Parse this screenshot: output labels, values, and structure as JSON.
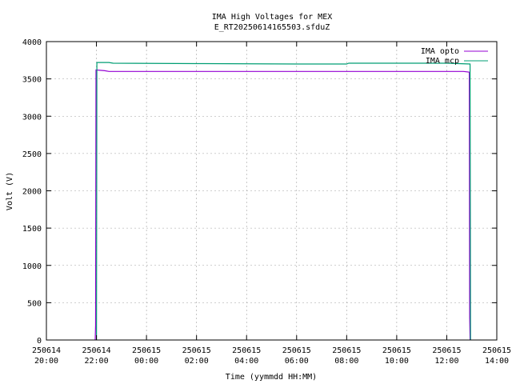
{
  "chart_data": {
    "type": "line",
    "title": "IMA High Voltages for MEX",
    "subtitle": "E_RT20250614165503.sfduZ",
    "xlabel": "Time (yymmdd HH:MM)",
    "ylabel": "Volt (V)",
    "xlim": [
      "2025-06-14 20:00",
      "2025-06-15 14:00"
    ],
    "ylim": [
      0,
      4000
    ],
    "grid": true,
    "legend_position": "top-right",
    "x_ticks": [
      {
        "value": "2025-06-14 20:00",
        "date": "250614",
        "time": "20:00"
      },
      {
        "value": "2025-06-14 22:00",
        "date": "250614",
        "time": "22:00"
      },
      {
        "value": "2025-06-15 00:00",
        "date": "250615",
        "time": "00:00"
      },
      {
        "value": "2025-06-15 02:00",
        "date": "250615",
        "time": "02:00"
      },
      {
        "value": "2025-06-15 04:00",
        "date": "250615",
        "time": "04:00"
      },
      {
        "value": "2025-06-15 06:00",
        "date": "250615",
        "time": "06:00"
      },
      {
        "value": "2025-06-15 08:00",
        "date": "250615",
        "time": "08:00"
      },
      {
        "value": "2025-06-15 10:00",
        "date": "250615",
        "time": "10:00"
      },
      {
        "value": "2025-06-15 12:00",
        "date": "250615",
        "time": "12:00"
      },
      {
        "value": "2025-06-15 14:00",
        "date": "250615",
        "time": "14:00"
      }
    ],
    "y_ticks": [
      "0",
      "500",
      "1000",
      "1500",
      "2000",
      "2500",
      "3000",
      "3500",
      "4000"
    ],
    "series": [
      {
        "name": "IMA opto",
        "color": "#9400d3",
        "points": [
          [
            "2025-06-14 21:57",
            0
          ],
          [
            "2025-06-14 21:58",
            200
          ],
          [
            "2025-06-14 21:59",
            3620
          ],
          [
            "2025-06-14 22:20",
            3610
          ],
          [
            "2025-06-14 22:30",
            3600
          ],
          [
            "2025-06-15 02:00",
            3600
          ],
          [
            "2025-06-15 06:00",
            3600
          ],
          [
            "2025-06-15 10:00",
            3600
          ],
          [
            "2025-06-15 12:40",
            3600
          ],
          [
            "2025-06-15 12:54",
            3590
          ],
          [
            "2025-06-15 12:55",
            300
          ],
          [
            "2025-06-15 12:56",
            0
          ]
        ]
      },
      {
        "name": "IMA mcp",
        "color": "#009e73",
        "points": [
          [
            "2025-06-14 22:00",
            0
          ],
          [
            "2025-06-14 22:01",
            3720
          ],
          [
            "2025-06-14 22:30",
            3720
          ],
          [
            "2025-06-14 22:40",
            3710
          ],
          [
            "2025-06-15 02:00",
            3705
          ],
          [
            "2025-06-15 06:00",
            3700
          ],
          [
            "2025-06-15 08:00",
            3700
          ],
          [
            "2025-06-15 08:05",
            3710
          ],
          [
            "2025-06-15 12:00",
            3710
          ],
          [
            "2025-06-15 12:56",
            3700
          ],
          [
            "2025-06-15 12:57",
            0
          ]
        ]
      }
    ]
  }
}
